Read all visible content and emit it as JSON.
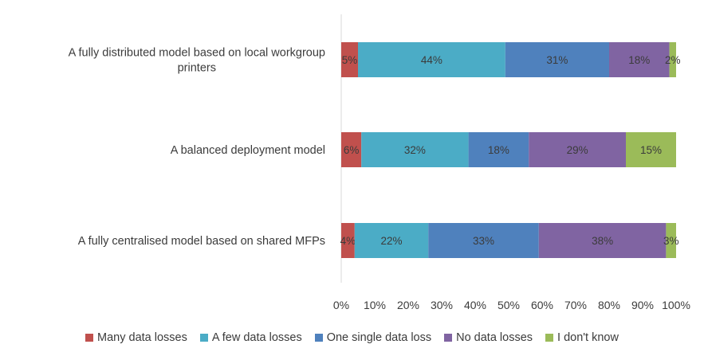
{
  "chart_data": {
    "type": "bar",
    "orientation": "horizontal",
    "stacked": true,
    "categories": [
      [
        "A fully distributed model based on local workgroup",
        "printers"
      ],
      [
        "A balanced deployment model"
      ],
      [
        "A fully centralised model based on shared MFPs"
      ]
    ],
    "series": [
      {
        "name": "Many data losses",
        "color": "#c0504d",
        "values": [
          5,
          6,
          4
        ]
      },
      {
        "name": "A few data losses",
        "color": "#4bacc6",
        "values": [
          44,
          32,
          22
        ]
      },
      {
        "name": "One single data loss",
        "color": "#4f81bd",
        "values": [
          31,
          18,
          33
        ]
      },
      {
        "name": "No data losses",
        "color": "#8064a2",
        "values": [
          18,
          29,
          38
        ]
      },
      {
        "name": "I don't know",
        "color": "#9bbb59",
        "values": [
          2,
          15,
          3
        ]
      }
    ],
    "xlim": [
      0,
      100
    ],
    "x_ticks": [
      "0%",
      "10%",
      "20%",
      "30%",
      "40%",
      "50%",
      "60%",
      "70%",
      "80%",
      "90%",
      "100%"
    ],
    "grid": false,
    "legend_position": "bottom",
    "value_suffix": "%"
  }
}
